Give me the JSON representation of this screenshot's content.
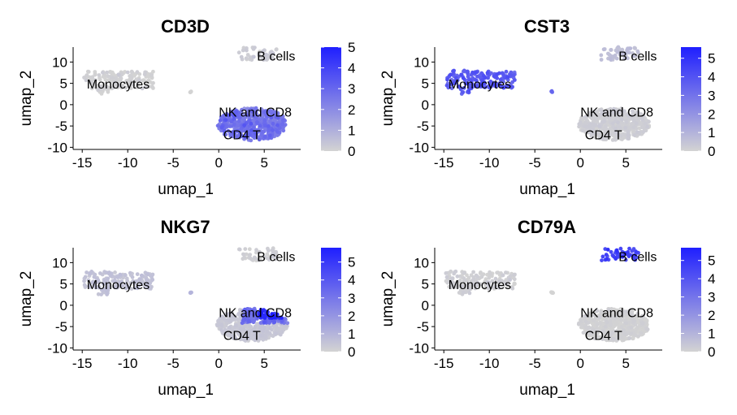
{
  "chart_data": [
    {
      "type": "scatter",
      "title": "CD3D",
      "xlabel": "umap_1",
      "ylabel": "umap_2",
      "xlim": [
        -16,
        9
      ],
      "ylim": [
        -10.5,
        13.5
      ],
      "xticks": [
        "-15",
        "-10",
        "-5",
        "0",
        "5"
      ],
      "yticks": [
        "-10",
        "-5",
        "0",
        "5",
        "10"
      ],
      "legend": {
        "max": 5,
        "ticks": [
          "5",
          "4",
          "3",
          "2",
          "1",
          "0"
        ],
        "low_color": "#d3d3d3",
        "high_color": "#1f1fff",
        "placement": "right"
      },
      "labels": [
        {
          "text": "B cells",
          "x": 4.2,
          "y": 11.3
        },
        {
          "text": "Monocytes",
          "x": -14.5,
          "y": 4.7
        },
        {
          "text": "NK and CD8",
          "x": 0,
          "y": -1.8
        },
        {
          "text": "CD4 T",
          "x": 0.5,
          "y": -7.2
        }
      ],
      "expression": {
        "monocytes": 0,
        "b_cells": 0.2,
        "nk_cd8": 2.3,
        "cd4_t": 2.5,
        "small": 0
      }
    },
    {
      "type": "scatter",
      "title": "CST3",
      "xlabel": "umap_1",
      "ylabel": "umap_2",
      "xlim": [
        -16,
        9
      ],
      "ylim": [
        -10.5,
        13.5
      ],
      "xticks": [
        "-15",
        "-10",
        "-5",
        "0",
        "5"
      ],
      "yticks": [
        "-10",
        "-5",
        "0",
        "5",
        "10"
      ],
      "legend": {
        "max": 5.6,
        "ticks": [
          "5",
          "4",
          "3",
          "2",
          "1",
          "0"
        ],
        "low_color": "#d3d3d3",
        "high_color": "#1f1fff",
        "placement": "right"
      },
      "labels": [
        {
          "text": "B cells",
          "x": 4.2,
          "y": 11.3
        },
        {
          "text": "Monocytes",
          "x": -14.5,
          "y": 4.7
        },
        {
          "text": "NK and CD8",
          "x": 0,
          "y": -1.8
        },
        {
          "text": "CD4 T",
          "x": 0.5,
          "y": -7.2
        }
      ],
      "expression": {
        "monocytes": 3.6,
        "b_cells": 0.6,
        "nk_cd8": 0.1,
        "cd4_t": 0.1,
        "small": 3.4
      }
    },
    {
      "type": "scatter",
      "title": "NKG7",
      "xlabel": "umap_1",
      "ylabel": "umap_2",
      "xlim": [
        -16,
        9
      ],
      "ylim": [
        -10.5,
        13.5
      ],
      "xticks": [
        "-15",
        "-10",
        "-5",
        "0",
        "5"
      ],
      "yticks": [
        "-10",
        "-5",
        "0",
        "5",
        "10"
      ],
      "legend": {
        "max": 5.8,
        "ticks": [
          "5",
          "4",
          "3",
          "2",
          "1",
          "0"
        ],
        "low_color": "#d3d3d3",
        "high_color": "#1f1fff",
        "placement": "right"
      },
      "labels": [
        {
          "text": "B cells",
          "x": 4.2,
          "y": 11.3
        },
        {
          "text": "Monocytes",
          "x": -14.5,
          "y": 4.7
        },
        {
          "text": "NK and CD8",
          "x": 0,
          "y": -1.8
        },
        {
          "text": "CD4 T",
          "x": 0.5,
          "y": -7.2
        }
      ],
      "expression": {
        "monocytes": 0.5,
        "b_cells": 0.1,
        "nk_cd8": 3.0,
        "cd4_t": 0.3,
        "small": 1.0,
        "nk_hot": 5.2
      }
    },
    {
      "type": "scatter",
      "title": "CD79A",
      "xlabel": "umap_1",
      "ylabel": "umap_2",
      "xlim": [
        -16,
        9
      ],
      "ylim": [
        -10.5,
        13.5
      ],
      "xticks": [
        "-15",
        "-10",
        "-5",
        "0",
        "5"
      ],
      "yticks": [
        "-10",
        "-5",
        "0",
        "5",
        "10"
      ],
      "legend": {
        "max": 5.7,
        "ticks": [
          "5",
          "4",
          "3",
          "2",
          "1",
          "0"
        ],
        "low_color": "#d3d3d3",
        "high_color": "#1f1fff",
        "placement": "right"
      },
      "labels": [
        {
          "text": "B cells",
          "x": 4.2,
          "y": 11.3
        },
        {
          "text": "Monocytes",
          "x": -14.5,
          "y": 4.7
        },
        {
          "text": "NK and CD8",
          "x": 0,
          "y": -1.8
        },
        {
          "text": "CD4 T",
          "x": 0.5,
          "y": -7.2
        }
      ],
      "expression": {
        "monocytes": 0.1,
        "b_cells": 4.5,
        "nk_cd8": 0,
        "cd4_t": 0,
        "small": 0
      }
    }
  ]
}
